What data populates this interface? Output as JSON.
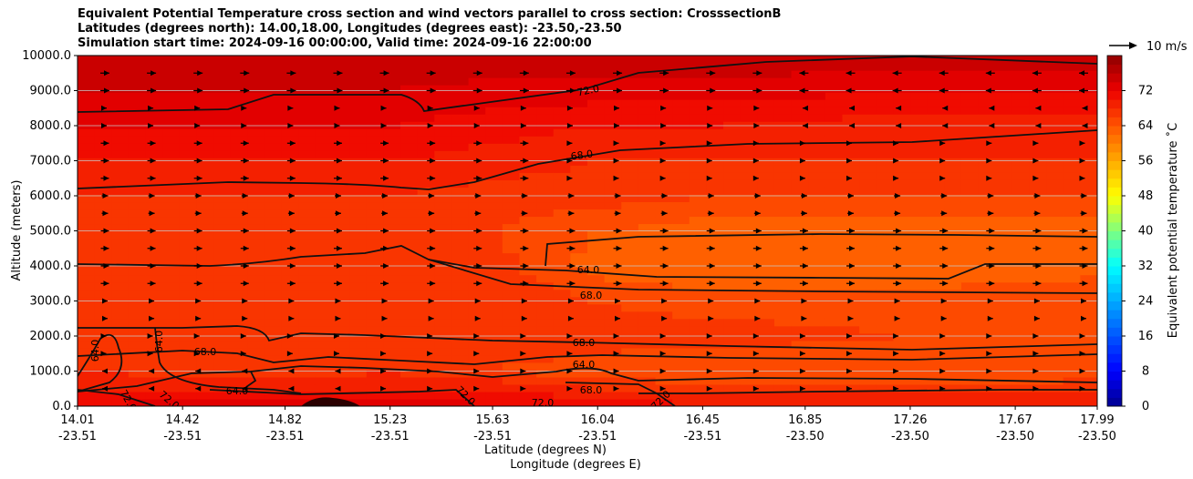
{
  "chart_data": {
    "type": "heatmap",
    "title_lines": [
      "Equivalent Potential Temperature cross section and wind vectors parallel to cross section: CrosssectionB",
      "Latitudes (degrees north): 14.00,18.00, Longitudes (degrees east): -23.50,-23.50",
      "Simulation start time: 2024-09-16 00:00:00, Valid time: 2024-09-16 22:00:00"
    ],
    "ylabel": "Altitude (meters)",
    "xlabel_lat": "Latitude (degrees N)",
    "xlabel_lon": "Longitude (degrees E)",
    "ylim": [
      0,
      10000
    ],
    "yticks": [
      "0.0",
      "1000.0",
      "2000.0",
      "3000.0",
      "4000.0",
      "5000.0",
      "6000.0",
      "7000.0",
      "8000.0",
      "9000.0",
      "10000.0"
    ],
    "xlim": [
      14.01,
      17.99
    ],
    "xticks_lat": [
      "14.01",
      "14.42",
      "14.82",
      "15.23",
      "15.63",
      "16.04",
      "16.45",
      "16.85",
      "17.26",
      "17.67",
      "17.99"
    ],
    "xticks_lon": [
      "-23.51",
      "-23.51",
      "-23.51",
      "-23.51",
      "-23.51",
      "-23.51",
      "-23.51",
      "-23.50",
      "-23.50",
      "-23.50",
      "-23.50"
    ],
    "grid": "horizontal",
    "colorbar": {
      "label": "Equivalent potential temperature ˚C",
      "range": [
        0,
        80
      ],
      "ticks": [
        "0",
        "8",
        "16",
        "24",
        "32",
        "40",
        "48",
        "56",
        "64",
        "72"
      ]
    },
    "quiver_key": "10 m/s",
    "contour_labels": [
      "72.0",
      "68.0",
      "64.0",
      "68.0",
      "68.0",
      "64.0",
      "68.0",
      "72.0",
      "64.0",
      "64.0",
      "68.0",
      "64.0",
      "72.0",
      "72.0",
      "72.0",
      "72.0"
    ],
    "profile_columns": {
      "x": [
        14.01,
        14.82,
        15.23,
        15.63,
        16.04,
        16.45,
        17.26,
        17.99
      ],
      "altitude": [
        0,
        500,
        1000,
        2000,
        3000,
        4000,
        5000,
        6000,
        7000,
        8000,
        9000,
        10000
      ],
      "theta_e": [
        [
          72,
          70,
          68,
          67,
          68,
          67,
          67,
          68,
          70,
          72,
          74,
          76
        ],
        [
          74,
          70,
          67,
          66,
          68,
          67,
          67,
          68,
          70,
          72,
          74,
          76
        ],
        [
          74,
          70,
          68,
          67,
          68,
          68,
          67,
          68,
          70,
          72,
          74,
          76
        ],
        [
          72,
          70,
          66,
          67,
          68,
          67,
          66,
          67,
          69,
          71,
          73,
          76
        ],
        [
          72,
          68,
          65,
          67,
          66,
          63,
          64,
          67,
          68,
          70,
          73,
          76
        ],
        [
          70,
          67,
          64,
          67,
          65,
          62,
          63,
          66,
          68,
          70,
          73,
          76
        ],
        [
          70,
          67,
          64,
          66,
          65,
          62,
          63,
          66,
          68,
          69,
          72,
          75
        ],
        [
          70,
          67,
          65,
          66,
          66,
          63,
          63,
          66,
          68,
          69,
          72,
          75
        ]
      ]
    }
  }
}
